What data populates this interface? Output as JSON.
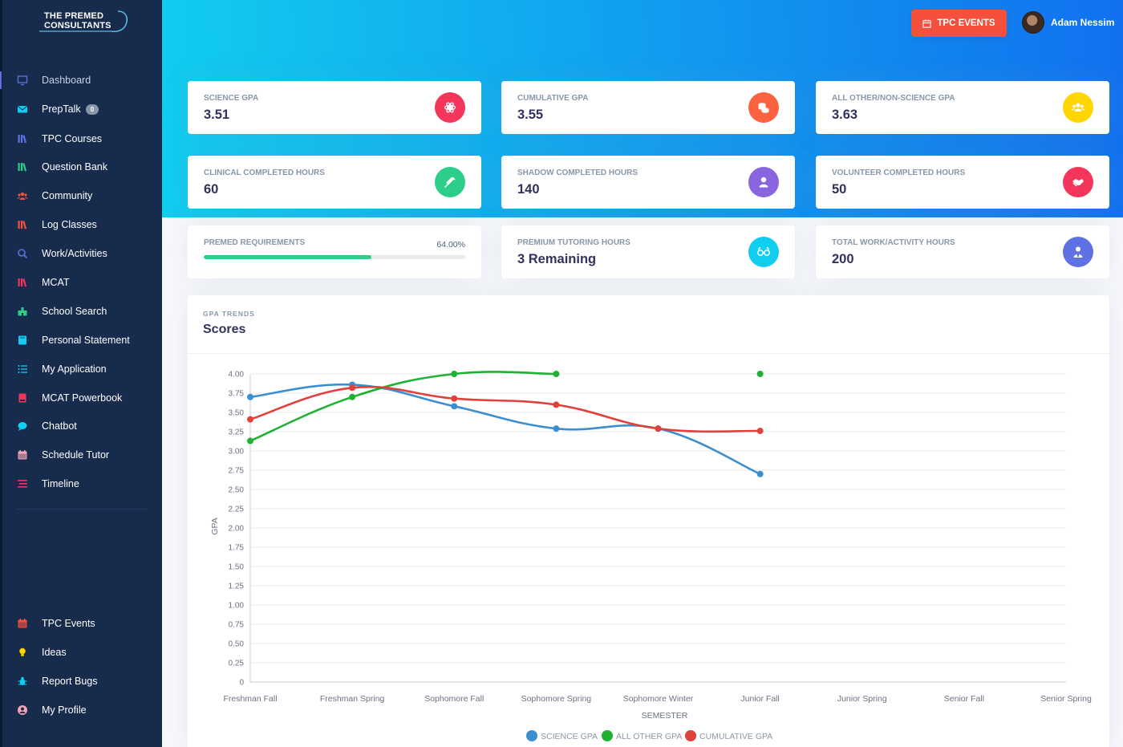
{
  "sidebar": {
    "logo": {
      "line1": "THE PREMED",
      "line2": "CONSULTANTS"
    },
    "items": [
      {
        "label": "Dashboard",
        "icon": "monitor-icon",
        "color": "#5e72e4",
        "active": true
      },
      {
        "label": "PrepTalk",
        "icon": "envelope-icon",
        "color": "#11cdef",
        "badge": "0"
      },
      {
        "label": "TPC Courses",
        "icon": "books-icon",
        "color": "#5e72e4"
      },
      {
        "label": "Question Bank",
        "icon": "books-icon",
        "color": "#2dce89"
      },
      {
        "label": "Community",
        "icon": "users-icon",
        "color": "#f5503c"
      },
      {
        "label": "Log Classes",
        "icon": "books-icon",
        "color": "#f5503c"
      },
      {
        "label": "Work/Activities",
        "icon": "user-search-icon",
        "color": "#5e72e4"
      },
      {
        "label": "MCAT",
        "icon": "books-icon",
        "color": "#f5365c"
      },
      {
        "label": "School Search",
        "icon": "school-icon",
        "color": "#2dce89"
      },
      {
        "label": "Personal Statement",
        "icon": "book-icon",
        "color": "#11cdef"
      },
      {
        "label": "My Application",
        "icon": "list-icon",
        "color": "#11cdef"
      },
      {
        "label": "MCAT Powerbook",
        "icon": "notebook-icon",
        "color": "#f5365c"
      },
      {
        "label": "Chatbot",
        "icon": "chat-icon",
        "color": "#11cdef"
      },
      {
        "label": "Schedule Tutor",
        "icon": "calendar-icon",
        "color": "#f3a4b5"
      },
      {
        "label": "Timeline",
        "icon": "timeline-icon",
        "color": "#f5365c"
      }
    ],
    "bottom_items": [
      {
        "label": "TPC Events",
        "icon": "calendar-icon",
        "color": "#f5503c"
      },
      {
        "label": "Ideas",
        "icon": "lightbulb-icon",
        "color": "#ffd600"
      },
      {
        "label": "Report Bugs",
        "icon": "bug-icon",
        "color": "#11cdef"
      },
      {
        "label": "My Profile",
        "icon": "user-circle-icon",
        "color": "#f3a4b5"
      }
    ]
  },
  "header": {
    "events_button": "TPC EVENTS",
    "user_name": "Adam Nessim"
  },
  "stats": [
    {
      "title": "SCIENCE GPA",
      "value": "3.51",
      "icon": "atom-icon",
      "color": "#f5365c"
    },
    {
      "title": "CUMULATIVE GPA",
      "value": "3.55",
      "icon": "coins-icon",
      "color": "#fb6340"
    },
    {
      "title": "ALL OTHER/NON-SCIENCE GPA",
      "value": "3.63",
      "icon": "users-icon",
      "color": "#ffd600"
    },
    {
      "title": "CLINICAL COMPLETED HOURS",
      "value": "60",
      "icon": "syringe-icon",
      "color": "#2dce89"
    },
    {
      "title": "SHADOW COMPLETED HOURS",
      "value": "140",
      "icon": "user-icon",
      "color": "#8965e0"
    },
    {
      "title": "VOLUNTEER COMPLETED HOURS",
      "value": "50",
      "icon": "handshake-icon",
      "color": "#f5365c"
    },
    {
      "title": "PREMIUM TUTORING HOURS",
      "value": "3 Remaining",
      "icon": "glasses-icon",
      "color": "#11cdef"
    },
    {
      "title": "TOTAL WORK/ACTIVITY HOURS",
      "value": "200",
      "icon": "user-tie-icon",
      "color": "#5e72e4"
    }
  ],
  "requirements": {
    "title": "PREMED REQUIREMENTS",
    "percent_label": "64.00%",
    "progress": 0.64
  },
  "chart_card": {
    "subtitle": "GPA TRENDS",
    "title": "Scores"
  },
  "chart_data": {
    "type": "line",
    "categories": [
      "Freshman Fall",
      "Freshman Spring",
      "Sophomore Fall",
      "Sophomore Spring",
      "Sophomore Winter",
      "Junior Fall",
      "Junior Spring",
      "Senior Fall",
      "Senior Spring"
    ],
    "series": [
      {
        "name": "SCIENCE GPA",
        "color": "#3b8fd1",
        "values": [
          3.7,
          3.86,
          3.58,
          3.29,
          3.29,
          2.7,
          null,
          null,
          null
        ]
      },
      {
        "name": "ALL OTHER GPA",
        "color": "#1fb134",
        "values": [
          3.13,
          3.7,
          4.0,
          4.0,
          null,
          4.0,
          null,
          null,
          null
        ]
      },
      {
        "name": "CUMULATIVE GPA",
        "color": "#e0413c",
        "values": [
          3.41,
          3.82,
          3.68,
          3.6,
          3.29,
          3.26,
          null,
          null,
          null
        ]
      }
    ],
    "ylim": [
      0,
      4
    ],
    "yticks": [
      "0",
      "0.25",
      "0.50",
      "0.75",
      "1.00",
      "1.25",
      "1.50",
      "1.75",
      "2.00",
      "2.25",
      "2.50",
      "2.75",
      "3.00",
      "3.25",
      "3.50",
      "3.75",
      "4.00"
    ],
    "xlabel": "SEMESTER",
    "ylabel": "GPA",
    "legend": "bottom",
    "grid": true
  }
}
